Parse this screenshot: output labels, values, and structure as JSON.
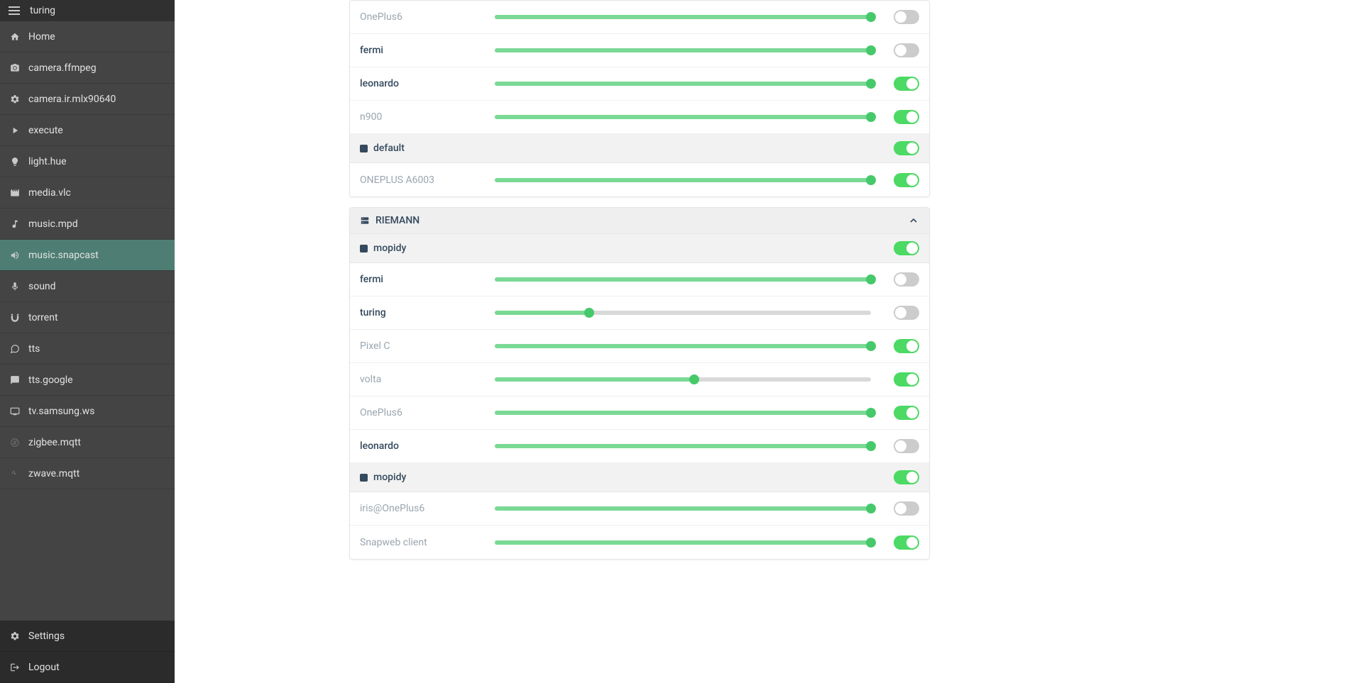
{
  "colors": {
    "sidebar_bg": "#444444",
    "sidebar_header_bg": "#303030",
    "sidebar_active_bg": "#4e7e73",
    "sidebar_text": "#e2e2e2",
    "slider_fill": "#7ad994",
    "slider_thumb": "#46c96a",
    "slider_track": "#d9d9d9",
    "toggle_on": "#4cd964",
    "toggle_off": "#cccccc",
    "text_primary": "#34495e",
    "text_inactive": "#9aa5af",
    "group_bg": "#f2f2f2",
    "panel_header_bg": "#efefef"
  },
  "sidebar": {
    "hostname": "turing",
    "items": [
      {
        "icon": "home",
        "label": "Home",
        "active": false
      },
      {
        "icon": "camera",
        "label": "camera.ffmpeg",
        "active": false
      },
      {
        "icon": "gear",
        "label": "camera.ir.mlx90640",
        "active": false
      },
      {
        "icon": "play",
        "label": "execute",
        "active": false
      },
      {
        "icon": "bulb",
        "label": "light.hue",
        "active": false
      },
      {
        "icon": "film",
        "label": "media.vlc",
        "active": false
      },
      {
        "icon": "music",
        "label": "music.mpd",
        "active": false
      },
      {
        "icon": "volume",
        "label": "music.snapcast",
        "active": true
      },
      {
        "icon": "mic",
        "label": "sound",
        "active": false
      },
      {
        "icon": "magnet",
        "label": "torrent",
        "active": false
      },
      {
        "icon": "chat",
        "label": "tts",
        "active": false
      },
      {
        "icon": "chat-fill",
        "label": "tts.google",
        "active": false
      },
      {
        "icon": "tv",
        "label": "tv.samsung.ws",
        "active": false
      },
      {
        "icon": "zigbee",
        "label": "zigbee.mqtt",
        "active": false
      },
      {
        "icon": "zwave",
        "label": "zwave.mqtt",
        "active": false
      }
    ],
    "footer": [
      {
        "icon": "gear",
        "label": "Settings"
      },
      {
        "icon": "logout",
        "label": "Logout"
      }
    ]
  },
  "panels": [
    {
      "title": null,
      "groups": [
        {
          "name": null,
          "toggle": null,
          "clients": [
            {
              "name": "OnePlus6",
              "active": false,
              "volume": 100,
              "toggle": false
            },
            {
              "name": "fermi",
              "active": true,
              "volume": 100,
              "toggle": false
            },
            {
              "name": "leonardo",
              "active": true,
              "volume": 100,
              "toggle": true
            },
            {
              "name": "n900",
              "active": false,
              "volume": 100,
              "toggle": true
            }
          ]
        },
        {
          "name": "default",
          "toggle": true,
          "clients": [
            {
              "name": "ONEPLUS A6003",
              "active": false,
              "volume": 100,
              "toggle": true
            }
          ]
        }
      ]
    },
    {
      "title": "RIEMANN",
      "groups": [
        {
          "name": "mopidy",
          "toggle": true,
          "clients": [
            {
              "name": "fermi",
              "active": true,
              "volume": 100,
              "toggle": false
            },
            {
              "name": "turing",
              "active": true,
              "volume": 25,
              "toggle": false
            },
            {
              "name": "Pixel C",
              "active": false,
              "volume": 100,
              "toggle": true
            },
            {
              "name": "volta",
              "active": false,
              "volume": 53,
              "toggle": true
            },
            {
              "name": "OnePlus6",
              "active": false,
              "volume": 100,
              "toggle": true
            },
            {
              "name": "leonardo",
              "active": true,
              "volume": 100,
              "toggle": false
            }
          ]
        },
        {
          "name": "mopidy",
          "toggle": true,
          "clients": [
            {
              "name": "iris@OnePlus6",
              "active": false,
              "volume": 100,
              "toggle": false
            },
            {
              "name": "Snapweb client",
              "active": false,
              "volume": 100,
              "toggle": true
            }
          ]
        }
      ]
    }
  ]
}
